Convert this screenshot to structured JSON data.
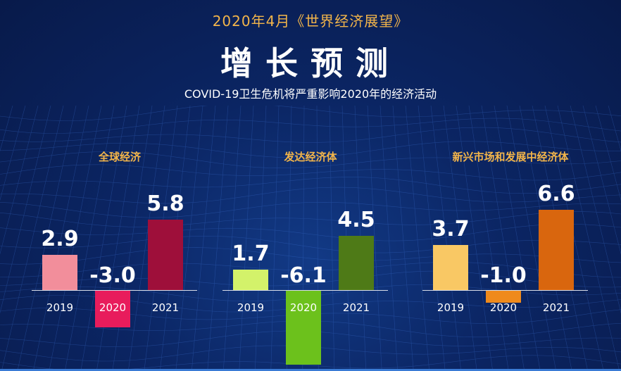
{
  "header": {
    "subtitle": "2020年4月《世界经济展望》",
    "title": "增长预测",
    "description": "COVID-19卫生危机将严重影响2020年的经济活动"
  },
  "chart_data": [
    {
      "type": "bar",
      "title": "全球经济",
      "categories": [
        "2019",
        "2020",
        "2021"
      ],
      "values": [
        2.9,
        -3.0,
        5.8
      ],
      "value_labels": [
        "2.9",
        "-3.0",
        "5.8"
      ],
      "colors": [
        "#f28e9b",
        "#e81c5c",
        "#9e0f3a"
      ],
      "highlight_category": "2020"
    },
    {
      "type": "bar",
      "title": "发达经济体",
      "categories": [
        "2019",
        "2020",
        "2021"
      ],
      "values": [
        1.7,
        -6.1,
        4.5
      ],
      "value_labels": [
        "1.7",
        "-6.1",
        "4.5"
      ],
      "colors": [
        "#d3f26a",
        "#6cc11c",
        "#4e7a17"
      ],
      "highlight_category": "2020"
    },
    {
      "type": "bar",
      "title": "新兴市场和发展中经济体",
      "categories": [
        "2019",
        "2020",
        "2021"
      ],
      "values": [
        3.7,
        -1.0,
        6.6
      ],
      "value_labels": [
        "3.7",
        "-1.0",
        "6.6"
      ],
      "colors": [
        "#f9c864",
        "#ef8a1c",
        "#d9660e"
      ],
      "highlight_category": "2020"
    }
  ]
}
